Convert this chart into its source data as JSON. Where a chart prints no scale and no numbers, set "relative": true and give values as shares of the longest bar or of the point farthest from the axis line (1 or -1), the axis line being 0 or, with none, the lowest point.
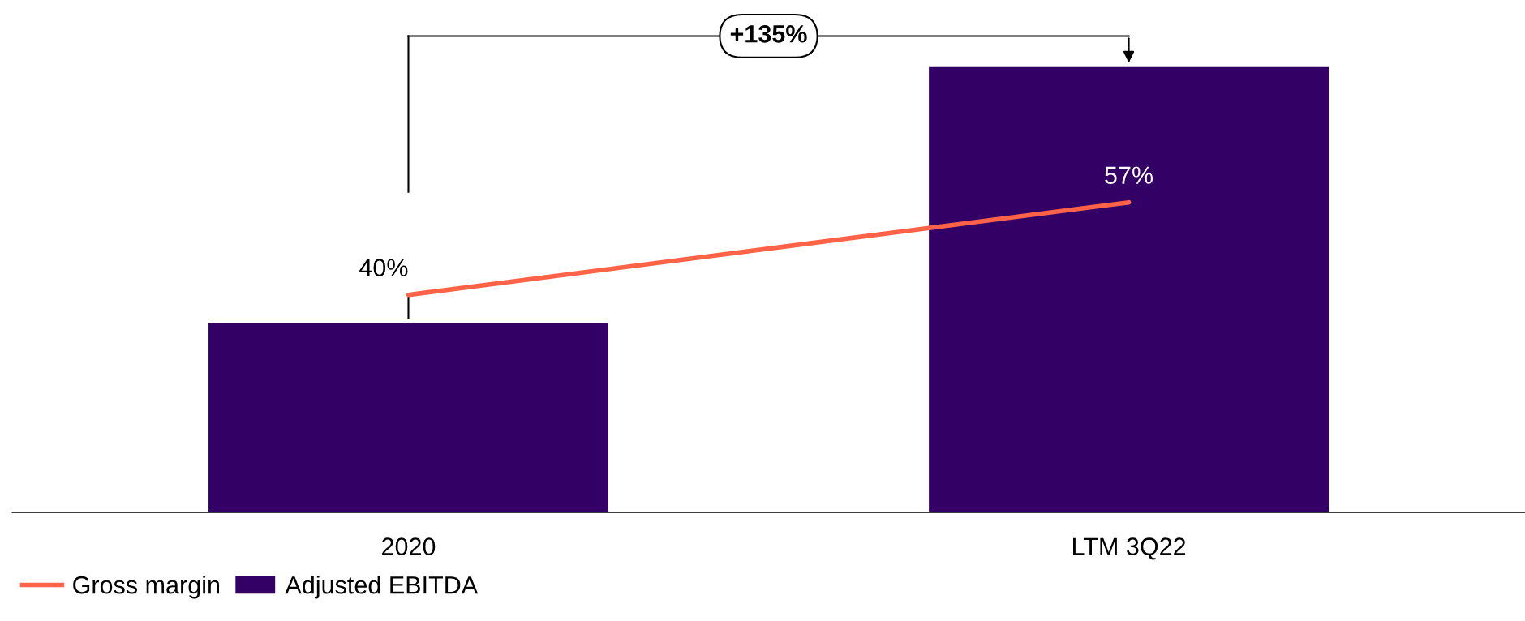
{
  "chart_data": [
    {
      "type": "bar",
      "relative": true,
      "categories": [
        "2020",
        "LTM 3Q22"
      ],
      "series": [
        {
          "name": "Adjusted EBITDA",
          "color": "#330066",
          "values": [
            0.4255,
            1
          ]
        }
      ],
      "annotations": [
        "+135%"
      ],
      "legend": "bottom left"
    },
    {
      "type": "line",
      "categories": [
        null,
        null
      ],
      "series": [
        {
          "name": "Gross margin",
          "color": "#ff6347",
          "values": [
            40,
            57
          ],
          "value_labels": [
            "40%",
            "57%"
          ]
        }
      ],
      "legend": "bottom left"
    }
  ]
}
